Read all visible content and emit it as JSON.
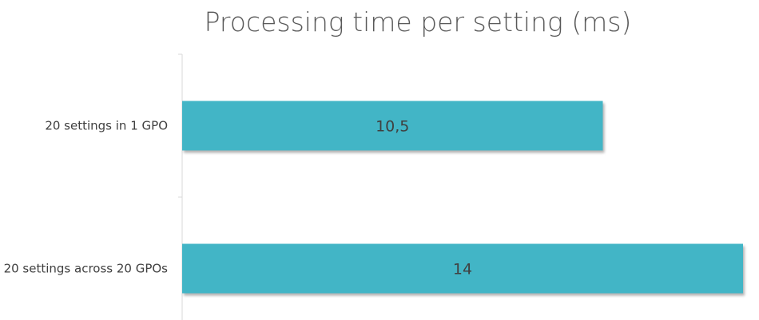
{
  "chart_data": {
    "type": "bar",
    "orientation": "horizontal",
    "title": "Processing time per setting (ms)",
    "categories": [
      "20 settings in 1 GPO",
      "20 settings across 20 GPOs"
    ],
    "values": [
      10.5,
      14
    ],
    "data_labels": [
      "10,5",
      "14"
    ],
    "xlim": [
      0,
      14
    ],
    "grid": false,
    "legend": "none",
    "bar_color": "#43b5c6"
  }
}
